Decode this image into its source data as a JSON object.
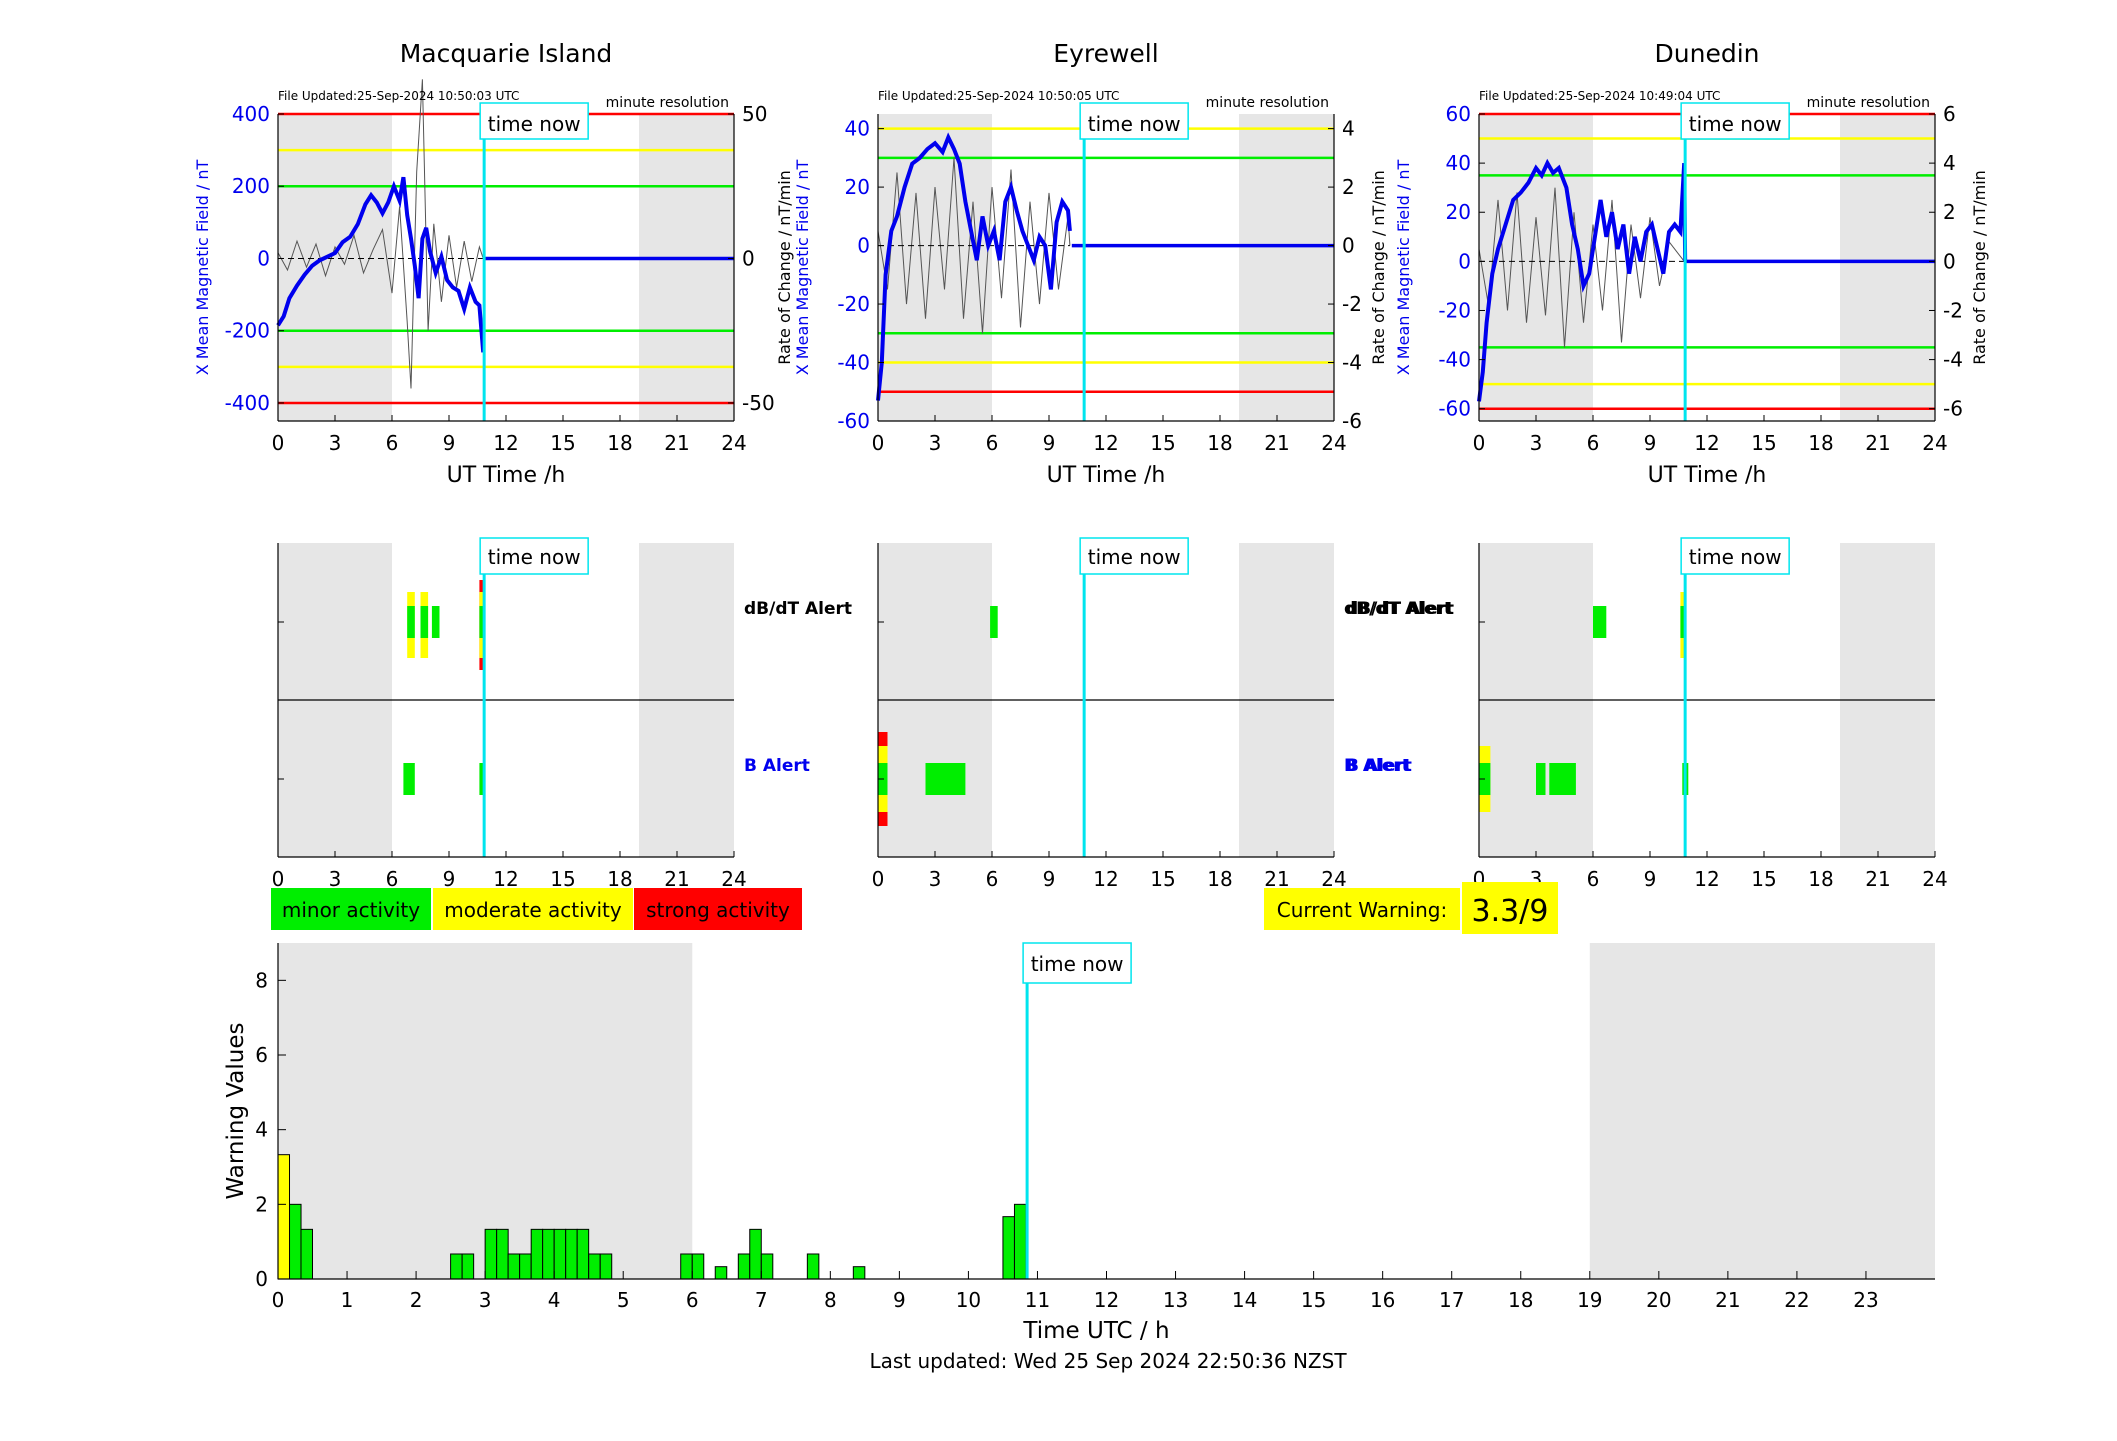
{
  "colors": {
    "red": "#ff0000",
    "yellow": "#ffff00",
    "green": "#00ee00",
    "blue": "#0000ee",
    "cyan": "#00e5ee",
    "gray_shade": "#e6e6e6",
    "trace_gray": "#555555"
  },
  "time_now_label": "time now",
  "time_now_hour": 10.85,
  "stations": [
    {
      "name": "Macquarie Island",
      "file_updated": "File Updated:25-Sep-2024 10:50:03 UTC",
      "resolution": "minute resolution",
      "ylabel_left": "X Mean Magnetic Field / nT",
      "ylabel_right": "",
      "left_ticks": [
        "400",
        "200",
        "0",
        "-200",
        "-400"
      ],
      "left_tick_values": [
        400,
        200,
        0,
        -200,
        -400
      ],
      "ylim_left": [
        -450,
        400
      ],
      "right_ticks": [
        "50",
        "0",
        "-50"
      ],
      "right_tick_values": [
        50,
        0,
        -50
      ],
      "ylim_right": [
        -56.25,
        50
      ],
      "thresholds": {
        "green": 200,
        "yellow": 300,
        "red": 400
      },
      "mean_field": [
        [
          0,
          -185
        ],
        [
          0.3,
          -160
        ],
        [
          0.6,
          -110
        ],
        [
          1,
          -75
        ],
        [
          1.4,
          -45
        ],
        [
          1.8,
          -20
        ],
        [
          2.2,
          -5
        ],
        [
          2.6,
          5
        ],
        [
          3,
          15
        ],
        [
          3.4,
          45
        ],
        [
          3.8,
          60
        ],
        [
          4.2,
          95
        ],
        [
          4.6,
          150
        ],
        [
          4.9,
          175
        ],
        [
          5.2,
          155
        ],
        [
          5.5,
          125
        ],
        [
          5.8,
          155
        ],
        [
          6.1,
          200
        ],
        [
          6.4,
          160
        ],
        [
          6.6,
          225
        ],
        [
          6.8,
          120
        ],
        [
          7,
          55
        ],
        [
          7.2,
          -20
        ],
        [
          7.4,
          -110
        ],
        [
          7.6,
          55
        ],
        [
          7.8,
          85
        ],
        [
          8,
          20
        ],
        [
          8.3,
          -40
        ],
        [
          8.6,
          5
        ],
        [
          8.9,
          -60
        ],
        [
          9.2,
          -80
        ],
        [
          9.5,
          -90
        ],
        [
          9.8,
          -140
        ],
        [
          10.1,
          -80
        ],
        [
          10.4,
          -120
        ],
        [
          10.6,
          -130
        ],
        [
          10.8,
          -260
        ]
      ],
      "mean_field_after": [
        [
          10.9,
          0
        ],
        [
          24,
          0
        ]
      ],
      "rate_trace": [
        [
          0,
          2
        ],
        [
          0.5,
          -4
        ],
        [
          1,
          6
        ],
        [
          1.5,
          -3
        ],
        [
          2,
          5
        ],
        [
          2.5,
          -6
        ],
        [
          3,
          4
        ],
        [
          3.5,
          -2
        ],
        [
          4,
          8
        ],
        [
          4.5,
          -5
        ],
        [
          5,
          3
        ],
        [
          5.5,
          10
        ],
        [
          6,
          -12
        ],
        [
          6.4,
          18
        ],
        [
          6.8,
          -22
        ],
        [
          7,
          -45
        ],
        [
          7.3,
          30
        ],
        [
          7.6,
          62
        ],
        [
          7.9,
          -25
        ],
        [
          8.2,
          12
        ],
        [
          8.6,
          -15
        ],
        [
          9,
          8
        ],
        [
          9.4,
          -10
        ],
        [
          9.8,
          6
        ],
        [
          10.2,
          -8
        ],
        [
          10.6,
          4
        ],
        [
          10.8,
          0
        ]
      ],
      "alerts": {
        "dbdt": [
          {
            "start": 6.8,
            "end": 7.2,
            "level": "yellow"
          },
          {
            "start": 7.5,
            "end": 7.9,
            "level": "yellow"
          },
          {
            "start": 8.1,
            "end": 8.5,
            "level": "green"
          },
          {
            "start": 10.6,
            "end": 10.9,
            "level": "red"
          }
        ],
        "b": [
          {
            "start": 6.6,
            "end": 7.2,
            "level": "green"
          },
          {
            "start": 10.6,
            "end": 10.9,
            "level": "green"
          }
        ]
      }
    },
    {
      "name": "Eyrewell",
      "file_updated": "File Updated:25-Sep-2024 10:50:05 UTC",
      "resolution": "minute resolution",
      "ylabel_left": "X Mean Magnetic Field / nT",
      "ylabel_right": "Rate of Change / nT/min",
      "left_ticks": [
        "40",
        "20",
        "0",
        "-20",
        "-40",
        "-60"
      ],
      "left_tick_values": [
        40,
        20,
        0,
        -20,
        -40,
        -60
      ],
      "ylim_left": [
        -60,
        45
      ],
      "right_ticks": [
        "4",
        "2",
        "0",
        "-2",
        "-4",
        "-6"
      ],
      "right_tick_values": [
        4,
        2,
        0,
        -2,
        -4,
        -6
      ],
      "ylim_right": [
        -6,
        4.5
      ],
      "thresholds": {
        "green": 30,
        "yellow": 40,
        "red": 50
      },
      "mean_field": [
        [
          0,
          -53
        ],
        [
          0.2,
          -40
        ],
        [
          0.4,
          -10
        ],
        [
          0.7,
          5
        ],
        [
          1,
          10
        ],
        [
          1.4,
          20
        ],
        [
          1.8,
          28
        ],
        [
          2.2,
          30
        ],
        [
          2.6,
          33
        ],
        [
          3,
          35
        ],
        [
          3.4,
          32
        ],
        [
          3.7,
          37
        ],
        [
          4,
          33
        ],
        [
          4.3,
          28
        ],
        [
          4.6,
          15
        ],
        [
          4.9,
          5
        ],
        [
          5.2,
          -5
        ],
        [
          5.5,
          10
        ],
        [
          5.8,
          0
        ],
        [
          6.1,
          5
        ],
        [
          6.4,
          -5
        ],
        [
          6.7,
          15
        ],
        [
          7,
          20
        ],
        [
          7.3,
          12
        ],
        [
          7.6,
          5
        ],
        [
          7.9,
          0
        ],
        [
          8.2,
          -5
        ],
        [
          8.5,
          3
        ],
        [
          8.8,
          0
        ],
        [
          9.1,
          -15
        ],
        [
          9.4,
          8
        ],
        [
          9.7,
          15
        ],
        [
          10,
          12
        ],
        [
          10.1,
          5
        ]
      ],
      "mean_field_after": [
        [
          10.2,
          0
        ],
        [
          24,
          0
        ]
      ],
      "rate_trace": [
        [
          0,
          0.5
        ],
        [
          0.5,
          -1.5
        ],
        [
          1,
          2.5
        ],
        [
          1.5,
          -2
        ],
        [
          2,
          1.8
        ],
        [
          2.5,
          -2.5
        ],
        [
          3,
          2
        ],
        [
          3.5,
          -1.5
        ],
        [
          4,
          3
        ],
        [
          4.5,
          -2.5
        ],
        [
          5,
          1.5
        ],
        [
          5.5,
          -3
        ],
        [
          6,
          2
        ],
        [
          6.5,
          -1.8
        ],
        [
          7,
          2.6
        ],
        [
          7.5,
          -2.8
        ],
        [
          8,
          1.5
        ],
        [
          8.5,
          -2
        ],
        [
          9,
          1.8
        ],
        [
          9.5,
          -1.5
        ],
        [
          10,
          1
        ],
        [
          10.1,
          0
        ]
      ],
      "alerts": {
        "dbdt": [
          {
            "start": 5.9,
            "end": 6.3,
            "level": "green"
          }
        ],
        "b": [
          {
            "start": 0,
            "end": 0.5,
            "level": "red"
          },
          {
            "start": 2.5,
            "end": 4.6,
            "level": "green"
          }
        ]
      }
    },
    {
      "name": "Dunedin",
      "file_updated": "File Updated:25-Sep-2024 10:49:04 UTC",
      "resolution": "minute resolution",
      "ylabel_left": "X Mean Magnetic Field / nT",
      "ylabel_right": "Rate of Change / nT/min",
      "left_ticks": [
        "60",
        "40",
        "20",
        "0",
        "-20",
        "-40",
        "-60"
      ],
      "left_tick_values": [
        60,
        40,
        20,
        0,
        -20,
        -40,
        -60
      ],
      "ylim_left": [
        -65,
        60
      ],
      "right_ticks": [
        "6",
        "4",
        "2",
        "0",
        "-2",
        "-4",
        "-6"
      ],
      "right_tick_values": [
        6,
        4,
        2,
        0,
        -2,
        -4,
        -6
      ],
      "ylim_right": [
        -6.5,
        6
      ],
      "thresholds": {
        "green": 35,
        "yellow": 50,
        "red": 60
      },
      "mean_field": [
        [
          0,
          -57
        ],
        [
          0.2,
          -45
        ],
        [
          0.4,
          -25
        ],
        [
          0.7,
          -5
        ],
        [
          1,
          5
        ],
        [
          1.4,
          15
        ],
        [
          1.8,
          25
        ],
        [
          2.2,
          28
        ],
        [
          2.6,
          32
        ],
        [
          3,
          38
        ],
        [
          3.3,
          35
        ],
        [
          3.6,
          40
        ],
        [
          3.9,
          36
        ],
        [
          4.2,
          38
        ],
        [
          4.6,
          30
        ],
        [
          4.9,
          15
        ],
        [
          5.2,
          5
        ],
        [
          5.5,
          -10
        ],
        [
          5.8,
          -5
        ],
        [
          6.1,
          10
        ],
        [
          6.4,
          25
        ],
        [
          6.7,
          10
        ],
        [
          7,
          20
        ],
        [
          7.3,
          5
        ],
        [
          7.6,
          15
        ],
        [
          7.9,
          -5
        ],
        [
          8.2,
          10
        ],
        [
          8.5,
          0
        ],
        [
          8.8,
          12
        ],
        [
          9.1,
          15
        ],
        [
          9.4,
          5
        ],
        [
          9.7,
          -5
        ],
        [
          10,
          12
        ],
        [
          10.3,
          15
        ],
        [
          10.6,
          12
        ],
        [
          10.8,
          40
        ],
        [
          10.85,
          0
        ]
      ],
      "mean_field_after": [
        [
          10.9,
          0
        ],
        [
          24,
          0
        ]
      ],
      "rate_trace": [
        [
          0,
          0.5
        ],
        [
          0.5,
          -1.8
        ],
        [
          1,
          2.5
        ],
        [
          1.5,
          -2
        ],
        [
          2,
          2.8
        ],
        [
          2.5,
          -2.5
        ],
        [
          3,
          1.8
        ],
        [
          3.5,
          -2.2
        ],
        [
          4,
          3
        ],
        [
          4.5,
          -3.5
        ],
        [
          5,
          2
        ],
        [
          5.5,
          -2.5
        ],
        [
          6,
          1.5
        ],
        [
          6.5,
          -2
        ],
        [
          7,
          2.5
        ],
        [
          7.5,
          -3.3
        ],
        [
          8,
          1.5
        ],
        [
          8.5,
          -1.5
        ],
        [
          9,
          1.8
        ],
        [
          9.5,
          -1
        ],
        [
          10,
          0.8
        ],
        [
          10.8,
          0
        ]
      ],
      "alerts": {
        "dbdt": [
          {
            "start": 6,
            "end": 6.7,
            "level": "green"
          },
          {
            "start": 10.6,
            "end": 10.9,
            "level": "yellow"
          }
        ],
        "b": [
          {
            "start": 0,
            "end": 0.6,
            "level": "yellow"
          },
          {
            "start": 3,
            "end": 3.5,
            "level": "green"
          },
          {
            "start": 3.7,
            "end": 5.1,
            "level": "green"
          },
          {
            "start": 10.7,
            "end": 10.9,
            "level": "green"
          }
        ]
      }
    }
  ],
  "station_xlabel": "UT Time /h",
  "station_xticks": [
    "0",
    "3",
    "6",
    "9",
    "12",
    "15",
    "18",
    "21",
    "24"
  ],
  "shade_ranges": [
    [
      0,
      6
    ],
    [
      19,
      24
    ]
  ],
  "alert_labels": {
    "dbdt": "dB/dT Alert",
    "b": "B Alert"
  },
  "legend": {
    "minor": "minor activity",
    "moderate": "moderate activity",
    "strong": "strong activity"
  },
  "current_warning": {
    "label": "Current Warning:",
    "value": "3.3/9"
  },
  "chart_data": {
    "type": "bar",
    "xlabel": "Time UTC / h",
    "ylabel": "Warning Values",
    "xlim": [
      0,
      24
    ],
    "ylim": [
      0,
      9
    ],
    "xticks": [
      "0",
      "1",
      "2",
      "3",
      "4",
      "5",
      "6",
      "7",
      "8",
      "9",
      "10",
      "11",
      "12",
      "13",
      "14",
      "15",
      "16",
      "17",
      "18",
      "19",
      "20",
      "21",
      "22",
      "23"
    ],
    "yticks": [
      "0",
      "2",
      "4",
      "6",
      "8"
    ],
    "bin_width_h": 0.1667,
    "shade_ranges": [
      [
        0,
        6
      ],
      [
        19,
        24
      ]
    ],
    "bars": [
      {
        "x": 0.0,
        "value": 3.33,
        "level": "moderate"
      },
      {
        "x": 0.167,
        "value": 2.0,
        "level": "minor"
      },
      {
        "x": 0.333,
        "value": 1.33,
        "level": "minor"
      },
      {
        "x": 2.5,
        "value": 0.67,
        "level": "minor"
      },
      {
        "x": 2.667,
        "value": 0.67,
        "level": "minor"
      },
      {
        "x": 3.0,
        "value": 1.33,
        "level": "minor"
      },
      {
        "x": 3.167,
        "value": 1.33,
        "level": "minor"
      },
      {
        "x": 3.333,
        "value": 0.67,
        "level": "minor"
      },
      {
        "x": 3.5,
        "value": 0.67,
        "level": "minor"
      },
      {
        "x": 3.667,
        "value": 1.33,
        "level": "minor"
      },
      {
        "x": 3.833,
        "value": 1.33,
        "level": "minor"
      },
      {
        "x": 4.0,
        "value": 1.33,
        "level": "minor"
      },
      {
        "x": 4.167,
        "value": 1.33,
        "level": "minor"
      },
      {
        "x": 4.333,
        "value": 1.33,
        "level": "minor"
      },
      {
        "x": 4.5,
        "value": 0.67,
        "level": "minor"
      },
      {
        "x": 4.667,
        "value": 0.67,
        "level": "minor"
      },
      {
        "x": 5.833,
        "value": 0.67,
        "level": "minor"
      },
      {
        "x": 6.0,
        "value": 0.67,
        "level": "minor"
      },
      {
        "x": 6.333,
        "value": 0.33,
        "level": "minor"
      },
      {
        "x": 6.667,
        "value": 0.67,
        "level": "minor"
      },
      {
        "x": 6.833,
        "value": 1.33,
        "level": "minor"
      },
      {
        "x": 7.0,
        "value": 0.67,
        "level": "minor"
      },
      {
        "x": 7.667,
        "value": 0.67,
        "level": "minor"
      },
      {
        "x": 8.333,
        "value": 0.33,
        "level": "minor"
      },
      {
        "x": 10.5,
        "value": 1.67,
        "level": "minor"
      },
      {
        "x": 10.667,
        "value": 2.0,
        "level": "minor"
      }
    ]
  },
  "last_updated": "Last updated: Wed 25 Sep 2024 22:50:36 NZST"
}
